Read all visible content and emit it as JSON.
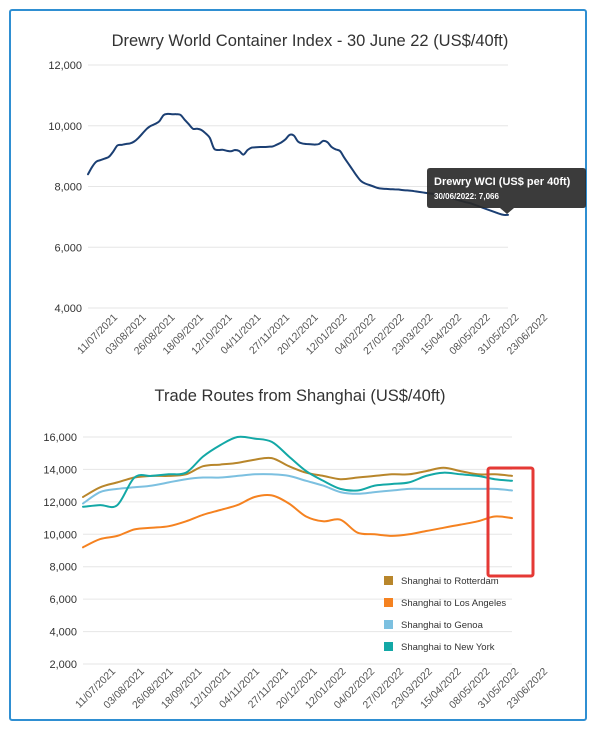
{
  "chart_data": [
    {
      "type": "line",
      "title": "Drewry World Container Index - 30 June 22 (US$/40ft)",
      "xlabel": "",
      "ylabel": "",
      "ylim": [
        4000,
        12000
      ],
      "yticks": [
        "4,000",
        "6,000",
        "8,000",
        "10,000",
        "12,000"
      ],
      "x_tick_labels": [
        "11/07/2021",
        "03/08/2021",
        "26/08/2021",
        "18/09/2021",
        "12/10/2021",
        "04/11/2021",
        "27/11/2021",
        "20/12/2021",
        "12/01/2022",
        "04/02/2022",
        "27/02/2022",
        "23/03/2022",
        "15/04/2022",
        "08/05/2022",
        "31/05/2022",
        "23/06/2022"
      ],
      "grid": true,
      "series": [
        {
          "name": "Drewry WCI (US$ per 40ft)",
          "color": "#1b3f73",
          "x": [
            1,
            1.5,
            2,
            2.5,
            3,
            3.5,
            4,
            4.5,
            5,
            5.5,
            6,
            6.5,
            7,
            7.5,
            8,
            8.5,
            9,
            9.5,
            10,
            10.5,
            11,
            11.5,
            12,
            12.5,
            13,
            13.5,
            14,
            14.5,
            15,
            15.5,
            16,
            16.5,
            17,
            17.5,
            18,
            18.5,
            19,
            19.5,
            20,
            20.5,
            21,
            21.5,
            22,
            22.5,
            23,
            23.5,
            24,
            24.5,
            25,
            25.5,
            26,
            26.5,
            27,
            27.5,
            28,
            28.5,
            29,
            29.5,
            30,
            30.5,
            31,
            31.5,
            32,
            32.5,
            33,
            33.5,
            34,
            34.5,
            35,
            35.5,
            36,
            36.5,
            37,
            37.5,
            38,
            38.5,
            39,
            39.5,
            40,
            40.5,
            41,
            41.5,
            42,
            42.5,
            43,
            43.5,
            44,
            44.5,
            45,
            45.5,
            46,
            46.5,
            47,
            47.5,
            48,
            48.5,
            49,
            49.5,
            50,
            50.5,
            51
          ],
          "values": [
            8400,
            8650,
            8820,
            8870,
            8920,
            8980,
            9150,
            9350,
            9370,
            9400,
            9420,
            9480,
            9600,
            9750,
            9900,
            10000,
            10060,
            10150,
            10350,
            10390,
            10380,
            10380,
            10360,
            10200,
            10050,
            9900,
            9900,
            9860,
            9750,
            9600,
            9250,
            9200,
            9210,
            9180,
            9160,
            9200,
            9170,
            9050,
            9200,
            9280,
            9290,
            9300,
            9300,
            9310,
            9320,
            9380,
            9450,
            9550,
            9700,
            9680,
            9480,
            9420,
            9400,
            9390,
            9380,
            9400,
            9500,
            9460,
            9300,
            9220,
            9170,
            8950,
            8750,
            8550,
            8350,
            8180,
            8100,
            8050,
            8000,
            7950,
            7930,
            7920,
            7910,
            7905,
            7900,
            7880,
            7870,
            7860,
            7840,
            7820,
            7800,
            7780,
            7760,
            7740,
            7720,
            7700,
            7650,
            7600,
            7560,
            7520,
            7480,
            7450,
            7400,
            7350,
            7300,
            7250,
            7200,
            7150,
            7100,
            7066,
            7066
          ]
        }
      ],
      "tooltip": {
        "title": "Drewry WCI (US$ per 40ft)",
        "text": "30/06/2022: 7,066"
      }
    },
    {
      "type": "line",
      "title": "Trade Routes from Shanghai (US$/40ft)",
      "xlabel": "",
      "ylabel": "",
      "ylim": [
        2000,
        16000
      ],
      "yticks": [
        "2,000",
        "4,000",
        "6,000",
        "8,000",
        "10,000",
        "12,000",
        "14,000",
        "16,000"
      ],
      "x_tick_labels": [
        "11/07/2021",
        "03/08/2021",
        "26/08/2021",
        "18/09/2021",
        "12/10/2021",
        "04/11/2021",
        "27/11/2021",
        "20/12/2021",
        "12/01/2022",
        "04/02/2022",
        "27/02/2022",
        "23/03/2022",
        "15/04/2022",
        "08/05/2022",
        "31/05/2022",
        "23/06/2022"
      ],
      "grid": true,
      "legend_position": "bottom-right",
      "series": [
        {
          "name": "Shanghai to Rotterdam",
          "color": "#b8862b",
          "x": [
            1,
            3,
            5,
            7,
            9,
            11,
            13,
            15,
            17,
            19,
            21,
            23,
            25,
            27,
            29,
            31,
            33,
            35,
            37,
            39,
            41,
            43,
            45,
            47,
            49,
            51
          ],
          "values": [
            12300,
            12900,
            13200,
            13500,
            13600,
            13600,
            13700,
            14200,
            14300,
            14400,
            14600,
            14700,
            14200,
            13800,
            13600,
            13400,
            13500,
            13600,
            13700,
            13700,
            13900,
            14100,
            13900,
            13700,
            13700,
            13600
          ]
        },
        {
          "name": "Shanghai to Los Angeles",
          "color": "#f58220",
          "x": [
            1,
            3,
            5,
            7,
            9,
            11,
            13,
            15,
            17,
            19,
            21,
            23,
            25,
            27,
            29,
            31,
            33,
            35,
            37,
            39,
            41,
            43,
            45,
            47,
            49,
            51
          ],
          "values": [
            9200,
            9700,
            9900,
            10300,
            10400,
            10500,
            10800,
            11200,
            11500,
            11800,
            12300,
            12400,
            11900,
            11100,
            10800,
            10900,
            10100,
            10000,
            9900,
            10000,
            10200,
            10400,
            10600,
            10800,
            11100,
            11000
          ]
        },
        {
          "name": "Shanghai to Genoa",
          "color": "#7cc0e0",
          "x": [
            1,
            3,
            5,
            7,
            9,
            11,
            13,
            15,
            17,
            19,
            21,
            23,
            25,
            27,
            29,
            31,
            33,
            35,
            37,
            39,
            41,
            43,
            45,
            47,
            49,
            51
          ],
          "values": [
            11900,
            12600,
            12800,
            12900,
            13000,
            13200,
            13400,
            13500,
            13500,
            13600,
            13700,
            13700,
            13600,
            13300,
            13000,
            12600,
            12500,
            12600,
            12700,
            12800,
            12800,
            12800,
            12800,
            12800,
            12800,
            12700
          ]
        },
        {
          "name": "Shanghai to New York",
          "color": "#13a8a6",
          "x": [
            1,
            3,
            5,
            7,
            9,
            11,
            13,
            15,
            17,
            19,
            21,
            23,
            25,
            27,
            29,
            31,
            33,
            35,
            37,
            39,
            41,
            43,
            45,
            47,
            49,
            51
          ],
          "values": [
            11700,
            11800,
            11800,
            13500,
            13600,
            13700,
            13800,
            14800,
            15500,
            16000,
            15900,
            15700,
            14800,
            13900,
            13300,
            12800,
            12700,
            13000,
            13100,
            13200,
            13600,
            13800,
            13700,
            13600,
            13400,
            13300
          ]
        }
      ]
    }
  ]
}
